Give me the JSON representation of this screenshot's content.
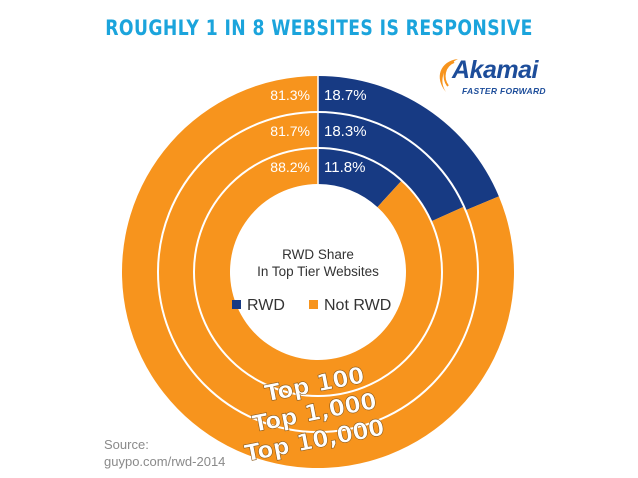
{
  "header": {
    "title": "ROUGHLY 1 IN 8 WEBSITES IS RESPONSIVE"
  },
  "logo": {
    "name": "Akamai",
    "tagline": "FASTER FORWARD"
  },
  "source": {
    "line1": "Source:",
    "line2": "guypo.com/rwd-2014"
  },
  "colors": {
    "title": "#1ba4dc",
    "rwd": "#173a83",
    "not_rwd": "#f7941d",
    "logo_text": "#1d4d9a",
    "logo_swoosh": "#f7941d",
    "source_text": "#8a8a8a",
    "center_text": "#333333",
    "ring_separator": "#ffffff",
    "ring_label_text": "#ffffff"
  },
  "chart_data": {
    "type": "donut",
    "center_text": {
      "line1": "RWD Share",
      "line2": "In Top Tier Websites"
    },
    "legend": {
      "placement": "center",
      "items": [
        {
          "label": "RWD",
          "color": "#173a83"
        },
        {
          "label": "Not RWD",
          "color": "#f7941d"
        }
      ]
    },
    "categories": [
      "RWD",
      "Not RWD"
    ],
    "rings": [
      {
        "label": "Top 100",
        "position": "inner",
        "values": [
          11.8,
          88.2
        ],
        "value_labels": [
          "11.8%",
          "88.2%"
        ]
      },
      {
        "label": "Top 1,000",
        "position": "middle",
        "values": [
          18.3,
          81.7
        ],
        "value_labels": [
          "18.3%",
          "81.7%"
        ]
      },
      {
        "label": "Top 10,000",
        "position": "outer",
        "values": [
          18.7,
          81.3
        ],
        "value_labels": [
          "18.7%",
          "81.3%"
        ]
      }
    ]
  }
}
